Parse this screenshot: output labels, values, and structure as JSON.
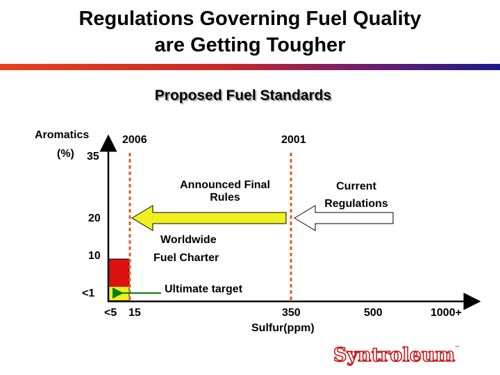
{
  "header": {
    "title_line1": "Regulations Governing Fuel Quality",
    "title_line2": "are Getting Tougher"
  },
  "colors": {
    "band_start": "#e8401a",
    "band_end": "#1a1a8c",
    "arrow_fill": "#f0f020",
    "bar_red": "#dd1111",
    "bar_yellow": "#f0f020",
    "dashed_line": "#e85a1a",
    "target_arrow": "#008000"
  },
  "chart_data": {
    "type": "bar",
    "title": "Proposed Fuel Standards",
    "ylabel_line1": "Aromatics",
    "ylabel_line2": "(%)",
    "xlabel": "Sulfur(ppm)",
    "y_ticks": [
      "35",
      "20",
      "10",
      "<1"
    ],
    "x_ticks": [
      "<5",
      "15",
      "350",
      "500",
      "1000+"
    ],
    "bar": {
      "sulfur_ppm": "<5",
      "aromatics_range": [
        "<1",
        "10"
      ],
      "target_segment": "<1"
    },
    "reference_lines": [
      {
        "year": "2006",
        "sulfur": "15"
      },
      {
        "year": "2001",
        "sulfur": "350"
      }
    ],
    "annotations": {
      "announced_line1": "Announced Final",
      "announced_line2": "Rules",
      "current_line1": "Current",
      "current_line2": "Regulations",
      "worldwide_line1": "Worldwide",
      "worldwide_line2": "Fuel Charter",
      "ultimate": "Ultimate target"
    }
  },
  "footer": {
    "logo_text": "Syntroleum",
    "logo_mark": "™"
  }
}
